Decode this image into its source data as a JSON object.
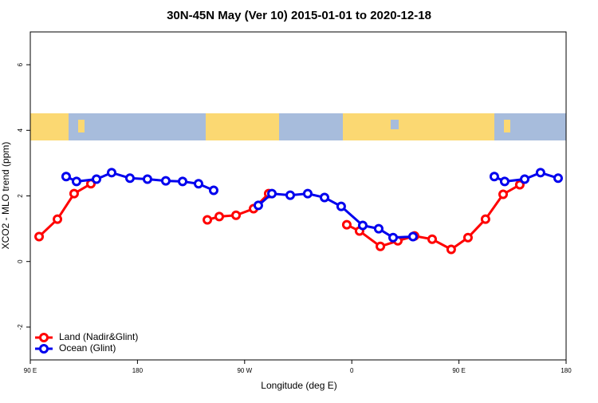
{
  "chart_data": {
    "type": "line",
    "title": "30N-45N May (Ver 10)   2015-01-01 to 2020-12-18",
    "x_label": "Longitude (deg E)",
    "y_label": "XCO2 - MLO trend (ppm)",
    "xlim": [
      90,
      540
    ],
    "xticks": [
      {
        "value": 90,
        "label": "90 E"
      },
      {
        "value": 180,
        "label": "180"
      },
      {
        "value": 270,
        "label": "90 W"
      },
      {
        "value": 360,
        "label": "0"
      },
      {
        "value": 450,
        "label": "90 E"
      },
      {
        "value": 540,
        "label": "180"
      }
    ],
    "ylim": [
      -3,
      7
    ],
    "yticks": [
      -2,
      0,
      2,
      4,
      6
    ],
    "legend": "bottom-left",
    "series": [
      {
        "name": "Land (Nadir&Glint)",
        "color": "#ff0000",
        "x": [
          97.4,
          112.8,
          126.8,
          140.9,
          null,
          238.7,
          248.7,
          262.8,
          277.5,
          290.2,
          null,
          355.8,
          366.5,
          384,
          398.7,
          412.7,
          427.5,
          443.5,
          457.6,
          472.3,
          487.1,
          501.1
        ],
        "values": [
          0.76,
          1.29,
          2.07,
          2.37,
          null,
          1.27,
          1.37,
          1.41,
          1.61,
          2.07,
          null,
          1.12,
          0.93,
          0.46,
          0.63,
          0.78,
          0.68,
          0.37,
          0.73,
          1.29,
          2.05,
          2.34
        ]
      },
      {
        "name": "Ocean (Glint)",
        "color": "#0000ee",
        "x": [
          120.1,
          128.8,
          145.6,
          158.3,
          173.7,
          188.4,
          203.8,
          217.9,
          231.3,
          244,
          null,
          281.5,
          292.9,
          308.3,
          323,
          337.1,
          351.1,
          369.2,
          382.6,
          394.7,
          411.4,
          null,
          479.7,
          488.4,
          505.2,
          518.5,
          533.3
        ],
        "values": [
          2.59,
          2.44,
          2.51,
          2.71,
          2.54,
          2.51,
          2.46,
          2.44,
          2.37,
          2.17,
          null,
          1.71,
          2.07,
          2.02,
          2.07,
          1.95,
          1.68,
          1.1,
          1.0,
          0.73,
          0.76,
          null,
          2.59,
          2.44,
          2.51,
          2.71,
          2.54
        ]
      }
    ]
  }
}
